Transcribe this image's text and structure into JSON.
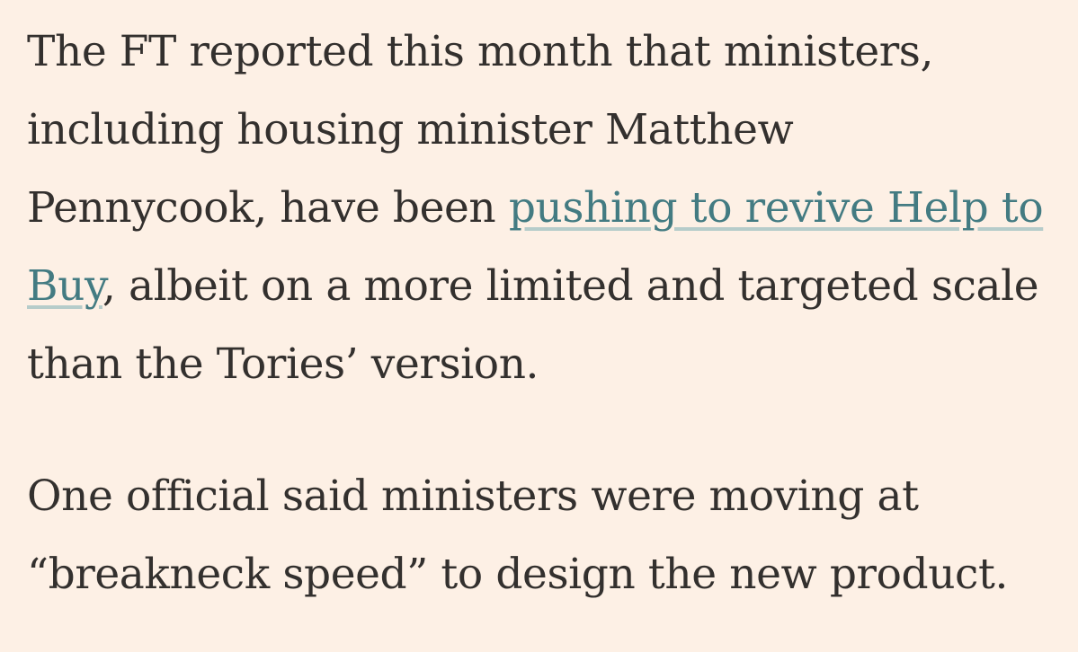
{
  "article": {
    "paragraph_1": {
      "line_1": "The FT reported this month that ministers,",
      "line_2": "including housing minister Matthew",
      "line_3_text": "Pennycook, have been ",
      "link_line_3": "pushing to revive Help to",
      "link_line_4": "Buy",
      "line_4_text": ", albeit on a more limited and targeted scale",
      "line_5": "than the Tories’ version."
    },
    "paragraph_2": {
      "line_1": "One official said ministers were moving at",
      "line_2": "“breakneck speed” to design the new product."
    }
  },
  "colors": {
    "background": "#fdf0e5",
    "text": "#33302e",
    "link": "#437b82",
    "link_underline": "#b6ccca"
  }
}
